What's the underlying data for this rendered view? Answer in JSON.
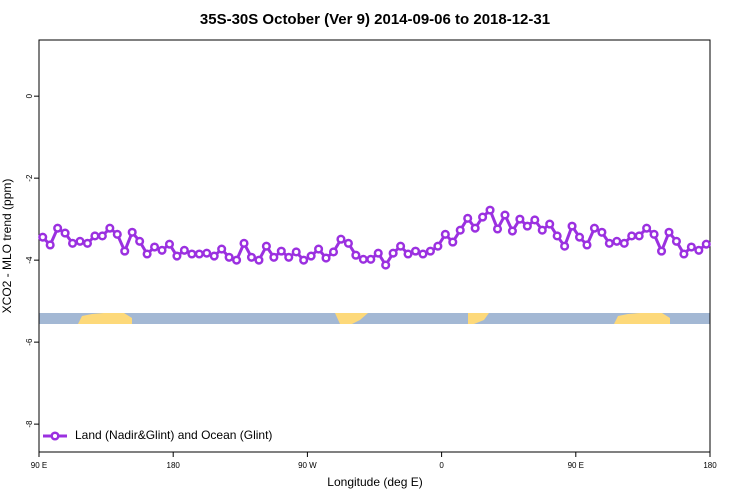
{
  "chart_data": {
    "type": "line",
    "title": "35S-30S October (Ver 9)   2014-09-06 to 2018-12-31",
    "xlabel": "Longitude (deg E)",
    "ylabel": "XCO2 - MLO trend (ppm)",
    "x": [
      92.5,
      97.5,
      102.5,
      107.5,
      112.5,
      117.5,
      122.5,
      127.5,
      132.5,
      137.5,
      142.5,
      147.5,
      152.5,
      157.5,
      162.5,
      167.5,
      172.5,
      177.5,
      182.5,
      187.5,
      192.5,
      197.5,
      202.5,
      207.5,
      212.5,
      217.5,
      222.5,
      227.5,
      232.5,
      237.5,
      242.5,
      247.5,
      252.5,
      257.5,
      262.5,
      267.5,
      272.5,
      277.5,
      282.5,
      287.5,
      292.5,
      297.5,
      302.5,
      307.5,
      312.5,
      317.5,
      322.5,
      327.5,
      332.5,
      337.5,
      342.5,
      347.5,
      352.5,
      357.5,
      362.5,
      367.5,
      372.5,
      377.5,
      382.5,
      387.5,
      392.5,
      397.5,
      402.5,
      407.5,
      412.5,
      417.5,
      422.5,
      427.5,
      432.5,
      437.5,
      442.5,
      447.5,
      452.5,
      457.5,
      462.5,
      467.5,
      472.5,
      477.5,
      482.5,
      487.5,
      492.5,
      497.5,
      502.5,
      507.5,
      512.5,
      517.5,
      522.5,
      527.5,
      532.5,
      537.5
    ],
    "series": [
      {
        "name": "Land (Nadir&Glint) and Ocean (Glint)",
        "color": "#9b30e0",
        "values": [
          -3.44,
          -3.63,
          -3.22,
          -3.34,
          -3.59,
          -3.54,
          -3.59,
          -3.41,
          -3.41,
          -3.22,
          -3.37,
          -3.78,
          -3.32,
          -3.54,
          -3.85,
          -3.68,
          -3.76,
          -3.61,
          -3.9,
          -3.76,
          -3.85,
          -3.85,
          -3.83,
          -3.9,
          -3.73,
          -3.93,
          -4.0,
          -3.59,
          -3.93,
          -4.0,
          -3.66,
          -3.93,
          -3.78,
          -3.93,
          -3.8,
          -4.0,
          -3.9,
          -3.73,
          -3.95,
          -3.8,
          -3.49,
          -3.59,
          -3.88,
          -3.98,
          -3.98,
          -3.83,
          -4.12,
          -3.83,
          -3.66,
          -3.85,
          -3.78,
          -3.85,
          -3.78,
          -3.66,
          -3.37,
          -3.56,
          -3.27,
          -2.98,
          -3.22,
          -2.95,
          -2.78,
          -3.24,
          -2.9,
          -3.29,
          -3.0,
          -3.17,
          -3.02,
          -3.27,
          -3.12,
          -3.41,
          -3.66,
          -3.17,
          -3.44,
          -3.63,
          -3.22,
          -3.32,
          -3.59,
          -3.54,
          -3.59,
          -3.41,
          -3.41,
          -3.22,
          -3.37,
          -3.78,
          -3.32,
          -3.54,
          -3.85,
          -3.68,
          -3.76,
          -3.61
        ]
      }
    ],
    "xlim": [
      90,
      540
    ],
    "xticks": [
      {
        "value": 90,
        "label": "90 E"
      },
      180,
      {
        "value": 270,
        "label": "90 W"
      },
      {
        "value": 360,
        "label": "0"
      },
      {
        "value": 450,
        "label": "90 E"
      },
      {
        "value": 540,
        "label": "180"
      }
    ],
    "ylim": [
      -8.68,
      1.37
    ],
    "yticks": [
      0,
      -2,
      -4,
      -6,
      -8
    ],
    "legend": "bottom-left"
  }
}
